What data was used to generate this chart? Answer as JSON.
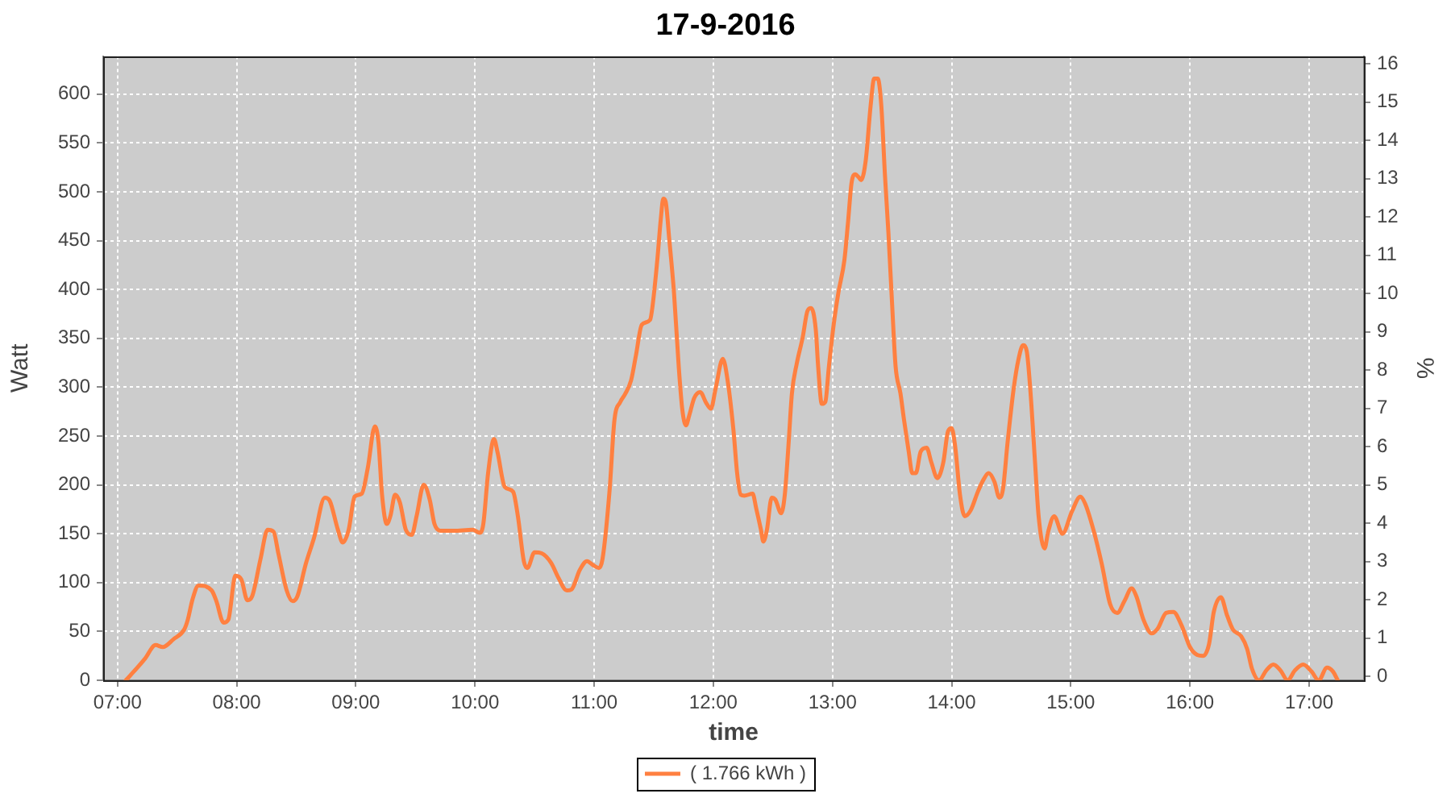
{
  "chart_data": {
    "type": "line",
    "title": "17-9-2016",
    "xlabel": "time",
    "ylabel": "Watt",
    "y2label": "%",
    "x": [
      7.07,
      7.16,
      7.23,
      7.32,
      7.38,
      7.47,
      7.56,
      7.59,
      7.63,
      7.68,
      7.79,
      7.83,
      7.89,
      7.93,
      7.99,
      8.04,
      8.09,
      8.13,
      8.2,
      8.26,
      8.31,
      8.35,
      8.42,
      8.47,
      8.51,
      8.58,
      8.65,
      8.74,
      8.78,
      8.85,
      8.89,
      8.94,
      8.99,
      9.05,
      9.1,
      9.16,
      9.19,
      9.22,
      9.26,
      9.29,
      9.33,
      9.37,
      9.42,
      9.47,
      9.51,
      9.57,
      9.62,
      9.66,
      9.71,
      9.82,
      9.98,
      10.04,
      10.07,
      10.11,
      10.16,
      10.19,
      10.25,
      10.32,
      10.36,
      10.41,
      10.44,
      10.5,
      10.56,
      10.64,
      10.7,
      10.77,
      10.81,
      10.88,
      10.94,
      10.99,
      11.04,
      11.07,
      11.13,
      11.17,
      11.22,
      11.26,
      11.31,
      11.35,
      11.4,
      11.47,
      11.49,
      11.53,
      11.56,
      11.58,
      11.6,
      11.63,
      11.67,
      11.71,
      11.74,
      11.77,
      11.8,
      11.84,
      11.89,
      11.94,
      11.98,
      12.02,
      12.08,
      12.12,
      12.17,
      12.2,
      12.23,
      12.26,
      12.33,
      12.36,
      12.4,
      12.42,
      12.45,
      12.49,
      12.52,
      12.57,
      12.6,
      12.63,
      12.66,
      12.7,
      12.75,
      12.79,
      12.82,
      12.86,
      12.88,
      12.91,
      12.94,
      12.97,
      13.01,
      13.05,
      13.1,
      13.13,
      13.16,
      13.19,
      13.22,
      13.24,
      13.28,
      13.32,
      13.35,
      13.38,
      13.41,
      13.44,
      13.47,
      13.5,
      13.53,
      13.57,
      13.6,
      13.64,
      13.67,
      13.7,
      13.74,
      13.79,
      13.83,
      13.88,
      13.93,
      13.97,
      14.0,
      14.03,
      14.07,
      14.11,
      14.16,
      14.22,
      14.27,
      14.31,
      14.36,
      14.4,
      14.43,
      14.47,
      14.52,
      14.56,
      14.6,
      14.63,
      14.66,
      14.7,
      14.73,
      14.78,
      14.81,
      14.86,
      14.93,
      15.01,
      15.08,
      15.12,
      15.19,
      15.26,
      15.33,
      15.39,
      15.45,
      15.51,
      15.55,
      15.61,
      15.68,
      15.73,
      15.8,
      15.86,
      15.93,
      16.0,
      16.06,
      16.11,
      16.16,
      16.2,
      16.26,
      16.31,
      16.36,
      16.43,
      16.48,
      16.52,
      16.58,
      16.64,
      16.7,
      16.76,
      16.82,
      16.88,
      16.95,
      17.02,
      17.08,
      17.15,
      17.2,
      17.24
    ],
    "series": [
      {
        "name": "( 1.766 kWh )",
        "color": "#ff8040",
        "values": [
          0,
          12,
          22,
          36,
          34,
          42,
          52,
          62,
          83,
          97,
          92,
          81,
          59,
          62,
          107,
          103,
          82,
          86,
          124,
          154,
          152,
          130,
          92,
          81,
          86,
          119,
          146,
          187,
          184,
          154,
          141,
          154,
          188,
          191,
          217,
          260,
          244,
          190,
          160,
          168,
          190,
          182,
          154,
          149,
          168,
          200,
          185,
          160,
          153,
          153,
          154,
          151,
          160,
          212,
          247,
          233,
          198,
          193,
          168,
          122,
          115,
          131,
          130,
          120,
          105,
          92,
          93,
          113,
          122,
          118,
          115,
          124,
          195,
          266,
          285,
          293,
          307,
          332,
          364,
          369,
          383,
          430,
          473,
          493,
          490,
          452,
          397,
          321,
          277,
          261,
          272,
          289,
          295,
          284,
          278,
          299,
          329,
          307,
          255,
          212,
          190,
          189,
          191,
          176,
          154,
          142,
          154,
          187,
          185,
          171,
          190,
          239,
          294,
          324,
          351,
          378,
          381,
          359,
          321,
          283,
          285,
          321,
          364,
          397,
          430,
          468,
          509,
          518,
          515,
          512,
          533,
          588,
          616,
          616,
          588,
          518,
          457,
          386,
          321,
          294,
          267,
          234,
          212,
          212,
          234,
          238,
          223,
          207,
          223,
          255,
          258,
          239,
          190,
          168,
          174,
          193,
          206,
          212,
          203,
          187,
          195,
          244,
          298,
          328,
          343,
          337,
          298,
          223,
          168,
          135,
          152,
          168,
          150,
          173,
          188,
          181,
          154,
          119,
          78,
          69,
          81,
          94,
          86,
          62,
          48,
          53,
          69,
          70,
          56,
          34,
          26,
          25,
          37,
          70,
          85,
          67,
          52,
          45,
          32,
          12,
          0,
          10,
          16,
          10,
          0,
          10,
          16,
          9,
          0,
          13,
          9,
          0
        ]
      }
    ],
    "xlim": [
      6.88,
      17.46
    ],
    "xticks": [
      {
        "value": 7,
        "label": "07:00"
      },
      {
        "value": 8,
        "label": "08:00"
      },
      {
        "value": 9,
        "label": "09:00"
      },
      {
        "value": 10,
        "label": "10:00"
      },
      {
        "value": 11,
        "label": "11:00"
      },
      {
        "value": 12,
        "label": "12:00"
      },
      {
        "value": 13,
        "label": "13:00"
      },
      {
        "value": 14,
        "label": "14:00"
      },
      {
        "value": 15,
        "label": "15:00"
      },
      {
        "value": 16,
        "label": "16:00"
      },
      {
        "value": 17,
        "label": "17:00"
      }
    ],
    "ylim": [
      0,
      639
    ],
    "yticks": [
      0,
      50,
      100,
      150,
      200,
      250,
      300,
      350,
      400,
      450,
      500,
      550,
      600
    ],
    "y2lim": [
      -0.1,
      16.2
    ],
    "y2ticks": [
      0,
      1,
      2,
      3,
      4,
      5,
      6,
      7,
      8,
      9,
      10,
      11,
      12,
      13,
      14,
      15,
      16
    ],
    "grid": true,
    "legend": "bottom",
    "marker": "none",
    "line_style": "solid"
  }
}
